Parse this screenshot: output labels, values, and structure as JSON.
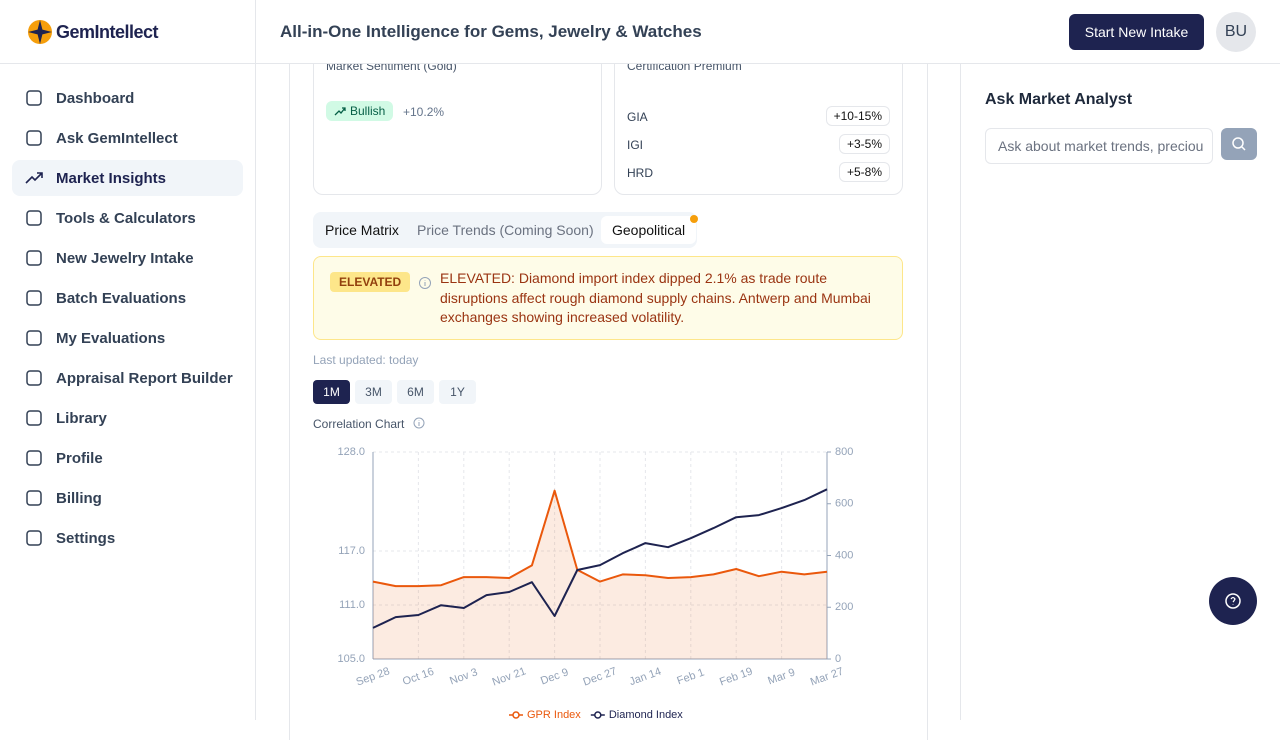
{
  "brand": "GemIntellect",
  "header": {
    "title": "All-in-One Intelligence for Gems, Jewelry & Watches",
    "button": "Start New Intake",
    "avatar": "BU"
  },
  "nav": [
    "Dashboard",
    "Ask GemIntellect",
    "Market Insights",
    "Tools & Calculators",
    "New Jewelry Intake",
    "Batch Evaluations",
    "My Evaluations",
    "Appraisal Report Builder",
    "Library",
    "Profile",
    "Billing",
    "Settings"
  ],
  "sentiment": {
    "label": "Market Sentiment (Gold)",
    "badge": "Bullish",
    "change": "+10.2%"
  },
  "certification": {
    "label": "Certification Premium",
    "rows": [
      [
        "GIA",
        "+10-15%"
      ],
      [
        "IGI",
        "+3-5%"
      ],
      [
        "HRD",
        "+5-8%"
      ]
    ]
  },
  "tabs": [
    "Price Matrix",
    "Price Trends (Coming Soon)",
    "Geopolitical"
  ],
  "alert": {
    "level": "ELEVATED",
    "text": "ELEVATED: Diamond import index dipped 2.1% as trade route disruptions affect rough diamond supply chains. Antwerp and Mumbai exchanges showing increased volatility."
  },
  "last_updated": "Last updated: today",
  "ranges": [
    "1M",
    "3M",
    "6M",
    "1Y"
  ],
  "chart_title": "Correlation Chart",
  "chart_data": {
    "type": "line",
    "categories": [
      "Sep 28",
      null,
      "Oct 16",
      null,
      "Nov 3",
      null,
      "Nov 21",
      null,
      "Dec 9",
      null,
      "Dec 27",
      null,
      "Jan 14",
      null,
      "Feb 1",
      null,
      "Feb 19",
      null,
      "Mar 9",
      null,
      "Mar 27"
    ],
    "series": [
      {
        "name": "GPR Index",
        "color": "#ea580c",
        "area": true,
        "values": [
          113.6,
          113.1,
          113.1,
          113.2,
          114.1,
          114.1,
          114.0,
          115.4,
          123.7,
          114.9,
          113.6,
          114.4,
          114.3,
          114.0,
          114.1,
          114.4,
          115.0,
          114.2,
          114.7,
          114.4,
          114.7
        ]
      },
      {
        "name": "Diamond Index",
        "color": "#1e2350",
        "axis": "y2",
        "values": [
          120,
          162,
          170,
          208,
          197,
          247,
          259,
          297,
          166,
          344,
          363,
          409,
          448,
          432,
          467,
          506,
          548,
          556,
          583,
          614,
          656
        ]
      }
    ],
    "ylim": [
      105,
      128
    ],
    "yticks": [
      {
        "value": 105,
        "label": "105.0"
      },
      {
        "value": 111,
        "label": "111.0"
      },
      {
        "value": 117,
        "label": "117.0"
      },
      {
        "value": 128,
        "label": "128.0"
      }
    ],
    "y2lim": [
      0,
      800
    ],
    "y2ticks": [
      0,
      200,
      400,
      600,
      800
    ],
    "grid": true,
    "legend": "bottom"
  },
  "analyst": {
    "title": "Ask Market Analyst",
    "placeholder": "Ask about market trends, preciou"
  }
}
